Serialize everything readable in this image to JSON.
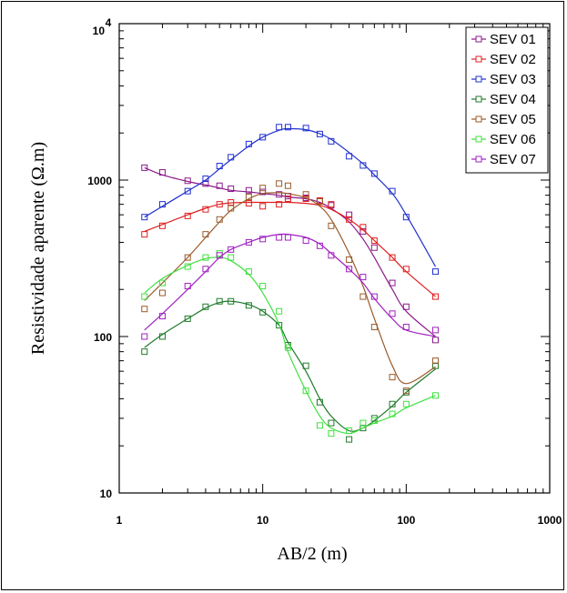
{
  "chart_data": {
    "type": "line",
    "xlabel": "AB/2 (m)",
    "ylabel": "Resistividade aparente (Ω.m)",
    "x_scale": "log",
    "y_scale": "log",
    "xlim": [
      1,
      1000
    ],
    "ylim": [
      10,
      10000
    ],
    "x_tick_labels": [
      "1",
      "10",
      "100",
      "1000"
    ],
    "y_tick_labels": [
      "10",
      "100",
      "1000"
    ],
    "y_top_label": {
      "base": "10",
      "exp": "4"
    },
    "legend_position": "top-right",
    "grid": false,
    "series": [
      {
        "name": "SEV 01",
        "color": "#8B1A8B",
        "x": [
          1.5,
          2,
          3,
          4,
          5,
          6,
          8,
          10,
          13,
          15,
          20,
          25,
          30,
          40,
          50,
          60,
          80,
          100,
          160
        ],
        "y": [
          1200,
          1120,
          990,
          950,
          920,
          880,
          860,
          840,
          810,
          790,
          770,
          730,
          690,
          600,
          470,
          370,
          220,
          155,
          95
        ],
        "fit": [
          1200,
          1080,
          980,
          930,
          890,
          860,
          840,
          820,
          800,
          780,
          760,
          720,
          660,
          540,
          420,
          320,
          200,
          145,
          100
        ]
      },
      {
        "name": "SEV 02",
        "color": "#E02020",
        "x": [
          1.5,
          2,
          3,
          4,
          5,
          6,
          8,
          10,
          13,
          15,
          20,
          25,
          30,
          40,
          50,
          60,
          80,
          100,
          160
        ],
        "y": [
          450,
          510,
          590,
          650,
          700,
          720,
          710,
          680,
          700,
          760,
          760,
          740,
          700,
          560,
          500,
          410,
          320,
          270,
          180
        ],
        "fit": [
          470,
          520,
          600,
          660,
          700,
          715,
          720,
          720,
          720,
          720,
          710,
          690,
          650,
          560,
          480,
          410,
          320,
          260,
          180
        ]
      },
      {
        "name": "SEV 03",
        "color": "#2030D0",
        "x": [
          1.5,
          2,
          3,
          4,
          5,
          6,
          8,
          10,
          13,
          15,
          20,
          25,
          30,
          40,
          50,
          60,
          80,
          100,
          160
        ],
        "y": [
          580,
          700,
          850,
          1020,
          1230,
          1400,
          1700,
          1880,
          2180,
          2180,
          2150,
          1970,
          1770,
          1420,
          1240,
          1100,
          850,
          580,
          260
        ],
        "fit": [
          580,
          680,
          850,
          1000,
          1180,
          1350,
          1650,
          1880,
          2080,
          2130,
          2100,
          1980,
          1820,
          1500,
          1270,
          1080,
          820,
          600,
          280
        ]
      },
      {
        "name": "SEV 04",
        "color": "#1E7A2A",
        "x": [
          1.5,
          2,
          3,
          4,
          5,
          6,
          8,
          10,
          13,
          15,
          20,
          25,
          30,
          40,
          50,
          60,
          80,
          100,
          160
        ],
        "y": [
          80,
          100,
          130,
          155,
          168,
          168,
          158,
          143,
          118,
          88,
          65,
          38,
          28,
          22,
          26,
          30,
          37,
          44,
          65
        ],
        "fit": [
          85,
          103,
          130,
          152,
          165,
          168,
          160,
          145,
          118,
          92,
          60,
          40,
          31,
          25,
          26,
          29,
          36,
          44,
          62
        ]
      },
      {
        "name": "SEV 05",
        "color": "#9B5A2A",
        "x": [
          1.5,
          2,
          3,
          4,
          5,
          6,
          8,
          10,
          13,
          15,
          20,
          25,
          30,
          40,
          50,
          60,
          80,
          100,
          160
        ],
        "y": [
          150,
          190,
          320,
          450,
          560,
          660,
          780,
          890,
          950,
          920,
          810,
          730,
          510,
          310,
          180,
          115,
          55,
          45,
          70
        ],
        "fit": [
          170,
          220,
          320,
          430,
          540,
          640,
          760,
          820,
          830,
          820,
          770,
          680,
          560,
          340,
          210,
          130,
          65,
          50,
          64
        ]
      },
      {
        "name": "SEV 06",
        "color": "#40E040",
        "x": [
          1.5,
          2,
          3,
          4,
          5,
          6,
          8,
          10,
          13,
          15,
          20,
          25,
          30,
          40,
          50,
          60,
          80,
          100,
          160
        ],
        "y": [
          180,
          220,
          280,
          320,
          340,
          320,
          260,
          210,
          145,
          85,
          45,
          27,
          24,
          25,
          28,
          29,
          32,
          37,
          42
        ],
        "fit": [
          190,
          235,
          285,
          315,
          320,
          305,
          250,
          190,
          120,
          80,
          45,
          31,
          26,
          24,
          26,
          28,
          31,
          35,
          42
        ]
      },
      {
        "name": "SEV 07",
        "color": "#A020C0",
        "x": [
          1.5,
          2,
          3,
          4,
          5,
          6,
          8,
          10,
          13,
          15,
          20,
          25,
          30,
          40,
          50,
          60,
          80,
          100,
          160
        ],
        "y": [
          100,
          135,
          210,
          270,
          330,
          360,
          400,
          420,
          430,
          430,
          410,
          380,
          330,
          270,
          240,
          180,
          140,
          115,
          110
        ],
        "fit": [
          110,
          140,
          200,
          260,
          320,
          360,
          400,
          430,
          450,
          450,
          430,
          390,
          340,
          270,
          220,
          175,
          130,
          110,
          100
        ]
      }
    ]
  }
}
